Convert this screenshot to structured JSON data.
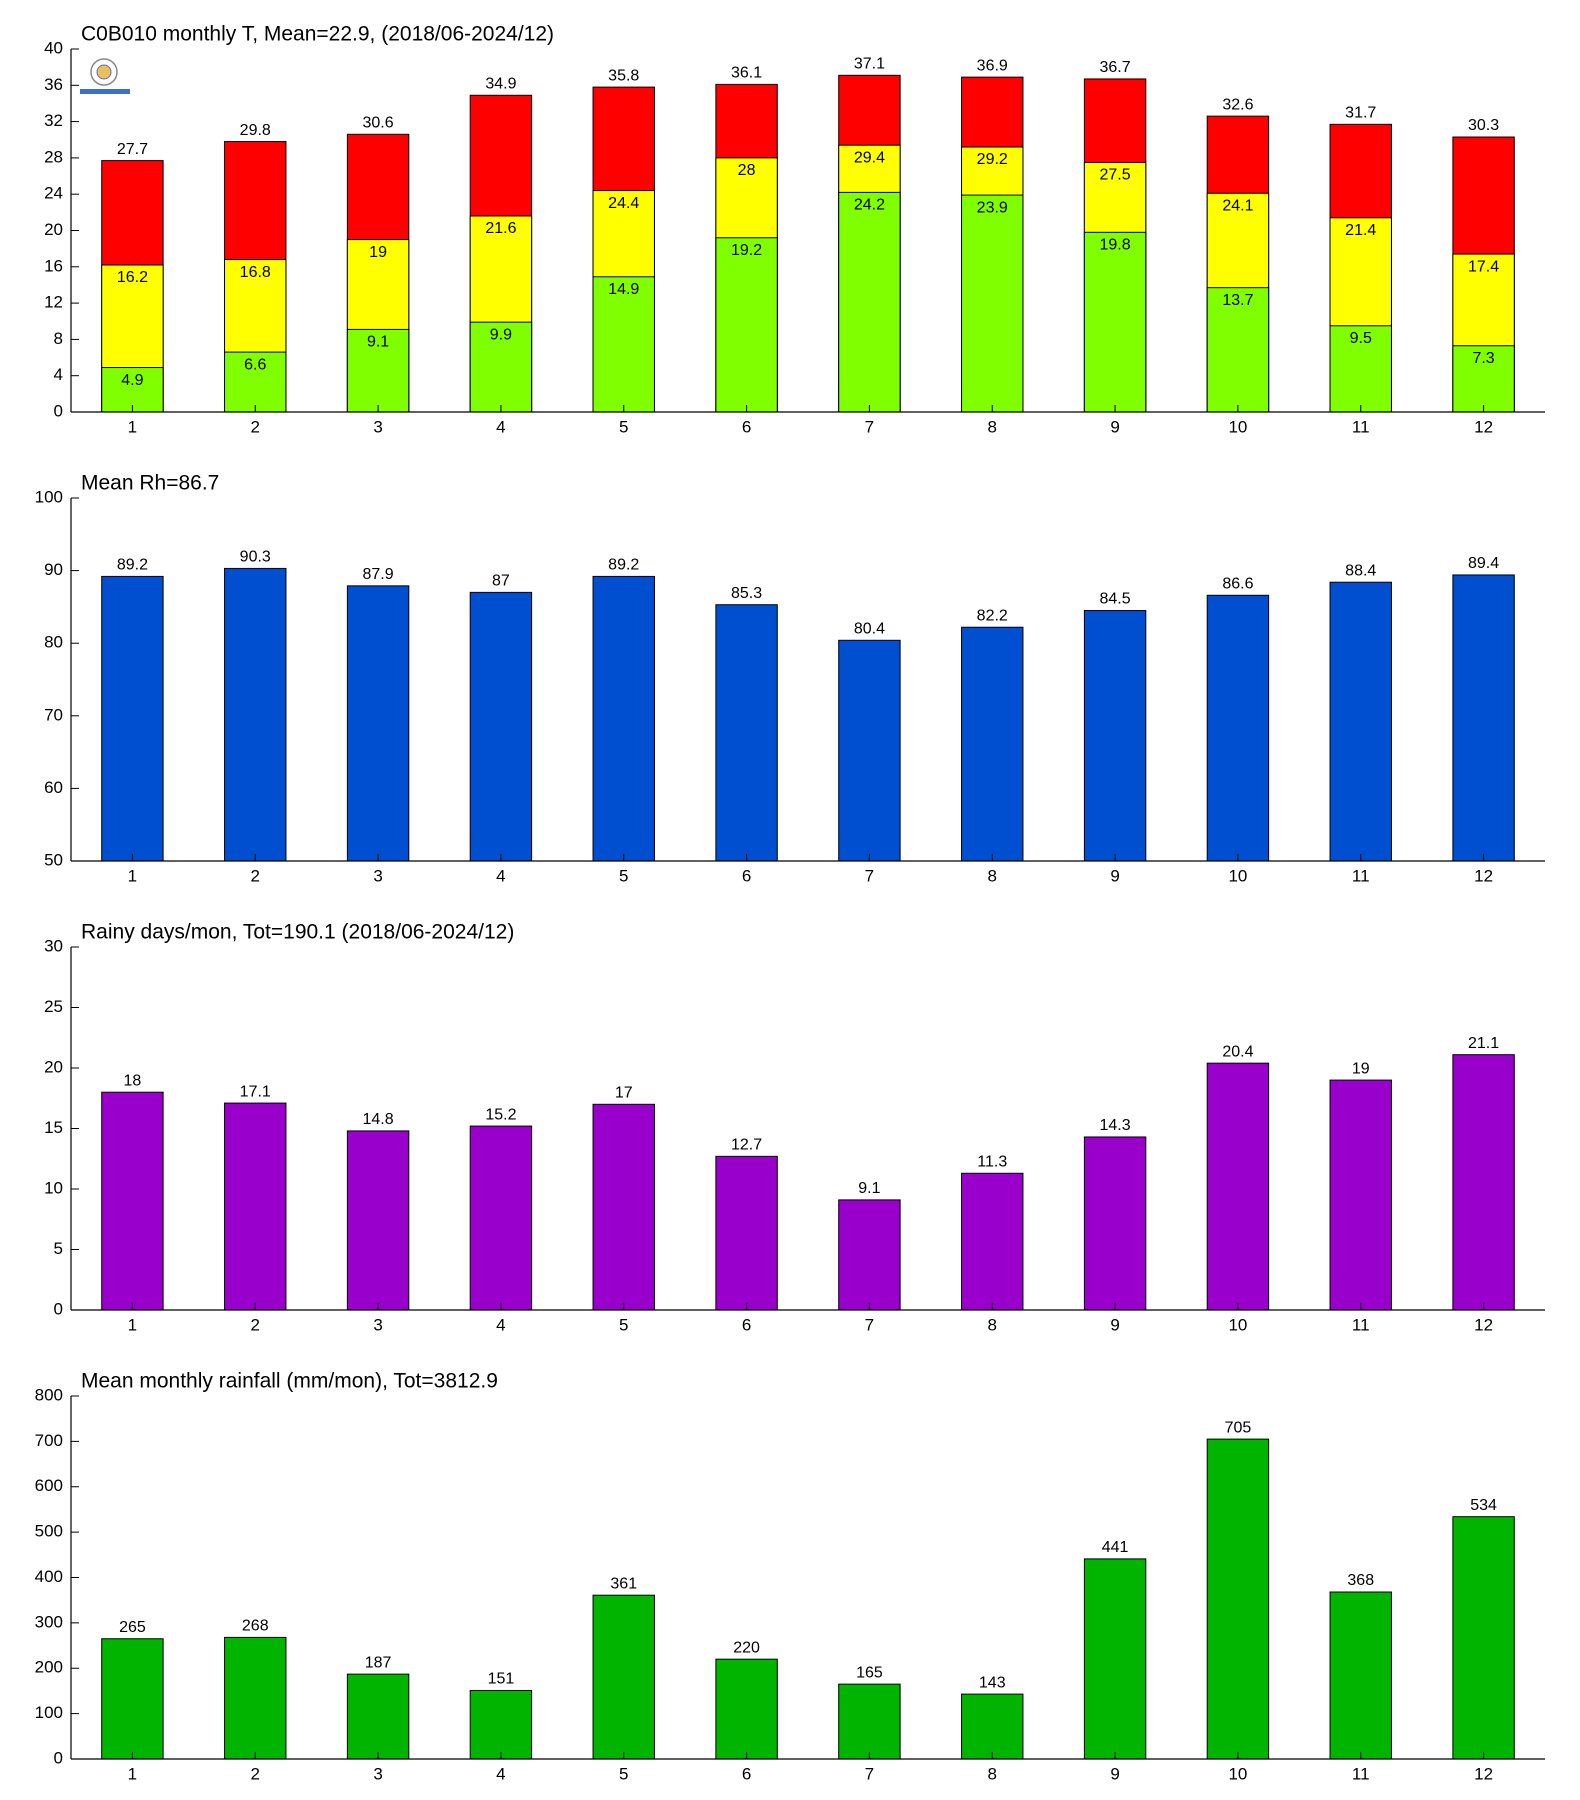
{
  "chart_data": [
    {
      "type": "bar",
      "title": "C0B010 monthly T, Mean=22.9, (2018/06-2024/12)",
      "categories": [
        1,
        2,
        3,
        4,
        5,
        6,
        7,
        8,
        9,
        10,
        11,
        12
      ],
      "series": [
        {
          "color": "#ff0000",
          "values": [
            27.7,
            29.8,
            30.6,
            34.9,
            35.8,
            36.1,
            37.1,
            36.9,
            36.7,
            32.6,
            31.7,
            30.3
          ]
        },
        {
          "color": "#ffff00",
          "values": [
            16.2,
            16.8,
            19,
            21.6,
            24.4,
            28,
            29.4,
            29.2,
            27.5,
            24.1,
            21.4,
            17.4
          ]
        },
        {
          "color": "#80ff00",
          "values": [
            4.9,
            6.6,
            9.1,
            9.9,
            14.9,
            19.2,
            24.2,
            23.9,
            19.8,
            13.7,
            9.5,
            7.3
          ]
        }
      ],
      "ylim": [
        0,
        40
      ],
      "yticks": [
        0,
        4,
        8,
        12,
        16,
        20,
        24,
        28,
        32,
        36,
        40
      ]
    },
    {
      "type": "bar",
      "title": "Mean Rh=86.7",
      "categories": [
        1,
        2,
        3,
        4,
        5,
        6,
        7,
        8,
        9,
        10,
        11,
        12
      ],
      "series": [
        {
          "color": "#004fd0",
          "values": [
            89.2,
            90.3,
            87.9,
            87,
            89.2,
            85.3,
            80.4,
            82.2,
            84.5,
            86.6,
            88.4,
            89.4
          ]
        }
      ],
      "ylim": [
        50,
        100
      ],
      "yticks": [
        50,
        60,
        70,
        80,
        90,
        100
      ]
    },
    {
      "type": "bar",
      "title": "Rainy days/mon, Tot=190.1 (2018/06-2024/12)",
      "categories": [
        1,
        2,
        3,
        4,
        5,
        6,
        7,
        8,
        9,
        10,
        11,
        12
      ],
      "series": [
        {
          "color": "#9900cc",
          "values": [
            18,
            17.1,
            14.8,
            15.2,
            17,
            12.7,
            9.1,
            11.3,
            14.3,
            20.4,
            19,
            21.1
          ]
        }
      ],
      "ylim": [
        0,
        30
      ],
      "yticks": [
        0,
        5,
        10,
        15,
        20,
        25,
        30
      ]
    },
    {
      "type": "bar",
      "title": "Mean monthly rainfall (mm/mon), Tot=3812.9",
      "categories": [
        1,
        2,
        3,
        4,
        5,
        6,
        7,
        8,
        9,
        10,
        11,
        12
      ],
      "series": [
        {
          "color": "#00b400",
          "values": [
            265,
            268,
            187,
            151,
            361,
            220,
            165,
            143,
            441,
            705,
            368,
            534
          ]
        }
      ],
      "ylim": [
        0,
        800
      ],
      "yticks": [
        0,
        100,
        200,
        300,
        400,
        500,
        600,
        700,
        800
      ]
    }
  ]
}
